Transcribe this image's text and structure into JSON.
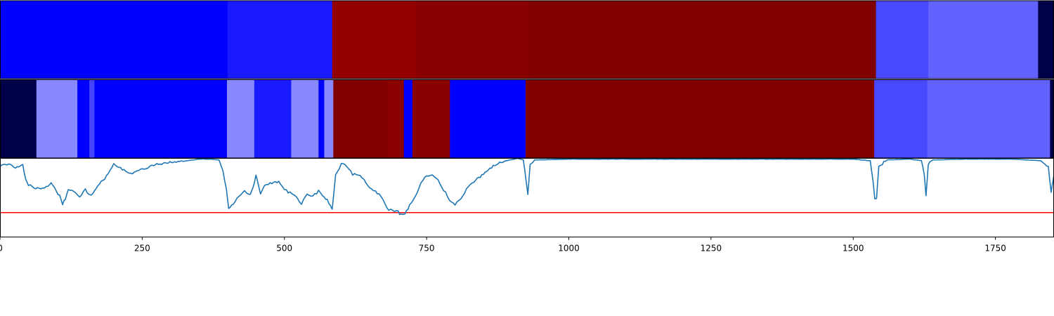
{
  "chart_data": [
    {
      "type": "heatmap",
      "name": "top-strip",
      "segments": [
        {
          "start": 0,
          "end": 400,
          "color": "#0000ff"
        },
        {
          "start": 400,
          "end": 584,
          "color": "#1a1aff"
        },
        {
          "start": 584,
          "end": 732,
          "color": "#930000"
        },
        {
          "start": 732,
          "end": 930,
          "color": "#880000"
        },
        {
          "start": 930,
          "end": 1540,
          "color": "#800000"
        },
        {
          "start": 1540,
          "end": 1632,
          "color": "#4848ff"
        },
        {
          "start": 1632,
          "end": 1825,
          "color": "#6262ff"
        },
        {
          "start": 1825,
          "end": 1853,
          "color": "#00004a"
        }
      ]
    },
    {
      "type": "heatmap",
      "name": "middle-strip",
      "segments": [
        {
          "start": 0,
          "end": 64,
          "color": "#00004a"
        },
        {
          "start": 64,
          "end": 136,
          "color": "#8888ff"
        },
        {
          "start": 136,
          "end": 157,
          "color": "#0000ff"
        },
        {
          "start": 157,
          "end": 166,
          "color": "#4444ff"
        },
        {
          "start": 166,
          "end": 399,
          "color": "#0000ff"
        },
        {
          "start": 399,
          "end": 447,
          "color": "#8888ff"
        },
        {
          "start": 447,
          "end": 512,
          "color": "#1a1aff"
        },
        {
          "start": 512,
          "end": 560,
          "color": "#8888ff"
        },
        {
          "start": 560,
          "end": 570,
          "color": "#0000ff"
        },
        {
          "start": 570,
          "end": 586,
          "color": "#8888ff"
        },
        {
          "start": 586,
          "end": 681,
          "color": "#800000"
        },
        {
          "start": 681,
          "end": 710,
          "color": "#8a0000"
        },
        {
          "start": 710,
          "end": 725,
          "color": "#0000ff"
        },
        {
          "start": 725,
          "end": 791,
          "color": "#880000"
        },
        {
          "start": 791,
          "end": 924,
          "color": "#0000ff"
        },
        {
          "start": 924,
          "end": 1537,
          "color": "#800000"
        },
        {
          "start": 1537,
          "end": 1630,
          "color": "#4848ff"
        },
        {
          "start": 1630,
          "end": 1846,
          "color": "#6262ff"
        },
        {
          "start": 1846,
          "end": 1853,
          "color": "#00004a"
        }
      ]
    },
    {
      "type": "line",
      "name": "signal",
      "xlim": [
        0,
        1853
      ],
      "ylim": [
        0,
        1
      ],
      "xticks": [
        0,
        250,
        500,
        750,
        1000,
        1250,
        1500,
        1750
      ],
      "xtick_labels": [
        "0",
        "250",
        "500",
        "750",
        "1000",
        "1250",
        "1500",
        "1750"
      ],
      "threshold": 0.31,
      "threshold_color": "#ff0000",
      "line_color": "#1f77b4",
      "x": [
        0,
        15,
        30,
        40,
        45,
        50,
        60,
        75,
        90,
        105,
        110,
        115,
        120,
        130,
        140,
        150,
        160,
        175,
        190,
        200,
        215,
        230,
        250,
        270,
        290,
        310,
        330,
        350,
        370,
        385,
        392,
        398,
        402,
        410,
        420,
        430,
        440,
        445,
        450,
        458,
        465,
        475,
        490,
        500,
        510,
        520,
        530,
        540,
        550,
        560,
        570,
        578,
        584,
        590,
        600,
        610,
        620,
        630,
        640,
        650,
        660,
        670,
        676,
        680,
        690,
        700,
        705,
        712,
        720,
        730,
        740,
        750,
        760,
        770,
        780,
        790,
        800,
        810,
        820,
        830,
        850,
        870,
        890,
        910,
        920,
        925,
        928,
        932,
        940,
        1000,
        1100,
        1200,
        1300,
        1400,
        1500,
        1530,
        1535,
        1538,
        1541,
        1545,
        1560,
        1600,
        1620,
        1625,
        1628,
        1632,
        1640,
        1700,
        1780,
        1830,
        1843,
        1848,
        1853
      ],
      "y": [
        0.91,
        0.93,
        0.88,
        0.92,
        0.73,
        0.66,
        0.63,
        0.62,
        0.68,
        0.52,
        0.42,
        0.48,
        0.61,
        0.58,
        0.51,
        0.6,
        0.52,
        0.67,
        0.8,
        0.93,
        0.86,
        0.8,
        0.86,
        0.91,
        0.94,
        0.95,
        0.97,
        0.99,
        0.99,
        0.98,
        0.85,
        0.6,
        0.36,
        0.42,
        0.52,
        0.58,
        0.55,
        0.62,
        0.78,
        0.55,
        0.66,
        0.68,
        0.7,
        0.6,
        0.56,
        0.52,
        0.42,
        0.55,
        0.52,
        0.58,
        0.52,
        0.44,
        0.36,
        0.78,
        0.93,
        0.9,
        0.8,
        0.78,
        0.74,
        0.62,
        0.58,
        0.52,
        0.44,
        0.36,
        0.34,
        0.32,
        0.28,
        0.3,
        0.4,
        0.52,
        0.68,
        0.78,
        0.8,
        0.72,
        0.6,
        0.48,
        0.42,
        0.48,
        0.6,
        0.68,
        0.8,
        0.92,
        0.97,
        1.0,
        0.98,
        0.72,
        0.54,
        0.92,
        0.98,
        0.99,
        0.99,
        0.99,
        0.99,
        0.99,
        0.99,
        0.97,
        0.7,
        0.5,
        0.5,
        0.9,
        0.98,
        0.99,
        0.97,
        0.8,
        0.54,
        0.92,
        0.98,
        0.99,
        0.99,
        0.97,
        0.9,
        0.56,
        0.79
      ]
    }
  ]
}
